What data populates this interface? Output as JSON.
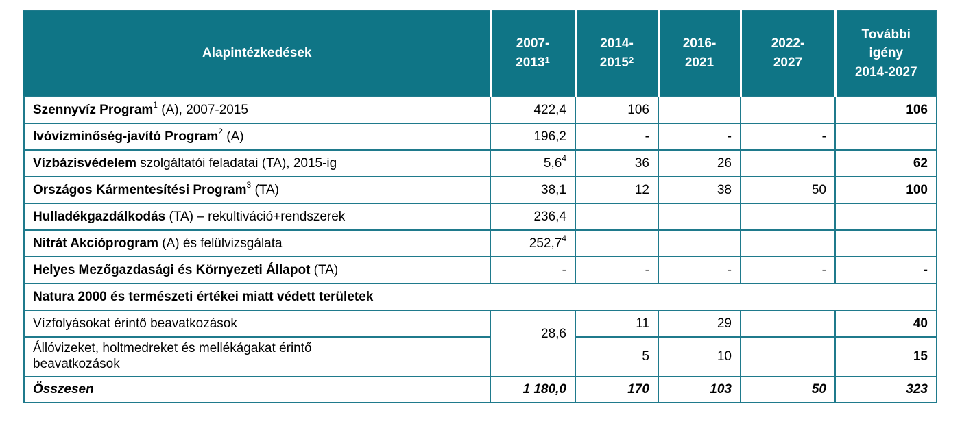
{
  "header": {
    "col_name": "Alapintézkedések",
    "col_2007": "2007-",
    "col_2007b": "2013",
    "col_2007_sup": "1",
    "col_2014": "2014-",
    "col_2014b": "2015",
    "col_2014_sup": "2",
    "col_2016": "2016-",
    "col_2016b": "2021",
    "col_2022": "2022-",
    "col_2022b": "2027",
    "col_tovabbi_1": "További",
    "col_tovabbi_2": "igény",
    "col_tovabbi_3": "2014-2027"
  },
  "rows": [
    {
      "bold": "Szennyvíz Program",
      "sup": "1",
      "rest": " (A), 2007-2015",
      "v1": "422,4",
      "v1sup": "",
      "v2": "106",
      "v3": "",
      "v4": "",
      "v5": "106"
    },
    {
      "bold": "Ivóvízminőség-javító Program",
      "sup": "2",
      "rest": " (A)",
      "v1": "196,2",
      "v1sup": "",
      "v2": "-",
      "v3": "-",
      "v4": "-",
      "v5": ""
    },
    {
      "bold": "Vízbázisvédelem",
      "sup": "",
      "rest": " szolgáltatói feladatai (TA), 2015-ig",
      "v1": "5,6",
      "v1sup": "4",
      "v2": "36",
      "v3": "26",
      "v4": "",
      "v5": "62"
    },
    {
      "bold": "Országos Kármentesítési Program",
      "sup": "3",
      "rest": " (TA)",
      "v1": "38,1",
      "v1sup": "",
      "v2": "12",
      "v3": "38",
      "v4": "50",
      "v5": "100"
    },
    {
      "bold": "Hulladékgazdálkodás",
      "sup": "",
      "rest": " (TA) – rekultiváció+rendszerek",
      "v1": "236,4",
      "v1sup": "",
      "v2": "",
      "v3": "",
      "v4": "",
      "v5": ""
    },
    {
      "bold": "Nitrát Akcióprogram",
      "sup": "",
      "rest": " (A) és felülvizsgálata",
      "v1": "252,7",
      "v1sup": "4",
      "v2": "",
      "v3": "",
      "v4": "",
      "v5": ""
    },
    {
      "bold": "Helyes Mezőgazdasági és Környezeti Állapot",
      "sup": "",
      "rest": " (TA)",
      "v1": "-",
      "v1sup": "",
      "v2": "-",
      "v3": "-",
      "v4": "-",
      "v5": "-"
    }
  ],
  "natura": {
    "title": "Natura 2000 és  természeti értékei miatt védett területek",
    "merged_value": "28,6",
    "sub1": {
      "label": "Vízfolyásokat érintő beavatkozások",
      "v2": "11",
      "v3": "29",
      "v4": "",
      "v5": "40"
    },
    "sub2": {
      "label_1": "Állóvizeket, holtmedreket és mellékágakat érintő",
      "label_2": "beavatkozások",
      "v2": "5",
      "v3": "10",
      "v4": "",
      "v5": "15"
    }
  },
  "total": {
    "label": "Összesen",
    "v1": "1 180,0",
    "v2": "170",
    "v3": "103",
    "v4": "50",
    "v5": "323"
  }
}
